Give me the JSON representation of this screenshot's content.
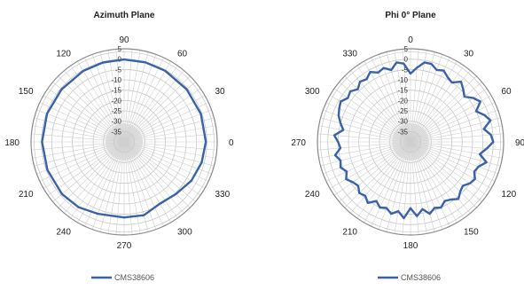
{
  "chart_data": [
    {
      "type": "polar-line",
      "title": "Azimuth Plane",
      "r_ticks": [
        5,
        0,
        -5,
        -10,
        -15,
        -20,
        -25,
        -30,
        -35
      ],
      "rlim": [
        -40,
        5
      ],
      "angle_ticks": [
        0,
        30,
        60,
        90,
        120,
        150,
        180,
        210,
        240,
        270,
        300,
        330
      ],
      "angle_zero": "right",
      "angle_direction": "counterclockwise",
      "angle_grid_step": 5,
      "grid": true,
      "legend": "bottom",
      "series": [
        {
          "name": "CMS38606",
          "color": "#3a62a8",
          "theta": [
            0,
            20,
            40,
            60,
            75,
            90,
            105,
            120,
            140,
            160,
            180,
            200,
            220,
            235,
            250,
            270,
            285,
            300,
            315,
            330,
            345,
            360
          ],
          "r": [
            -0.5,
            -0.5,
            -0.5,
            -0.3,
            -0.2,
            -0.2,
            -0.3,
            -0.4,
            -0.5,
            -0.3,
            -0.3,
            -0.5,
            -0.8,
            -1.5,
            -3.0,
            -3.5,
            -3.3,
            -5.5,
            -4.5,
            -2.5,
            -1.2,
            -0.5
          ]
        }
      ]
    },
    {
      "type": "polar-line",
      "title": "Phi 0° Plane",
      "r_ticks": [
        5,
        0,
        -5,
        -10,
        -15,
        -20,
        -25,
        -30,
        -35
      ],
      "rlim": [
        -40,
        5
      ],
      "angle_ticks": [
        0,
        30,
        60,
        90,
        120,
        150,
        180,
        210,
        240,
        270,
        300,
        330
      ],
      "angle_zero": "top",
      "angle_direction": "clockwise",
      "angle_grid_step": 5,
      "grid": true,
      "legend": "bottom",
      "series": [
        {
          "name": "CMS38606",
          "color": "#3a62a8",
          "theta": [
            0,
            5,
            10,
            15,
            20,
            25,
            30,
            35,
            40,
            45,
            50,
            55,
            60,
            65,
            70,
            75,
            80,
            85,
            90,
            95,
            100,
            105,
            110,
            115,
            120,
            125,
            130,
            135,
            140,
            145,
            150,
            155,
            160,
            165,
            170,
            175,
            180,
            185,
            190,
            195,
            200,
            205,
            210,
            215,
            220,
            225,
            230,
            235,
            240,
            245,
            250,
            255,
            260,
            265,
            270,
            275,
            280,
            285,
            290,
            295,
            300,
            305,
            310,
            315,
            320,
            325,
            330,
            335,
            340,
            345,
            350,
            355,
            360
          ],
          "r": [
            -7,
            -4,
            -1,
            -1,
            -3,
            -2,
            -4,
            -5,
            -2,
            -4,
            -6,
            -3,
            -1,
            -5,
            -2,
            0,
            -4,
            -1,
            0,
            -3,
            -6,
            -2,
            -5,
            -6,
            -4,
            -5,
            -7,
            -6,
            -4,
            -6,
            -7,
            -5,
            -6,
            -4,
            -7,
            -4,
            -8,
            -3,
            -6,
            -4,
            -6,
            -5,
            -7,
            -4,
            -6,
            -5,
            -7,
            -6,
            -4,
            -6,
            -4,
            -5,
            -3,
            -6,
            -5,
            -3,
            -7,
            -5,
            -3,
            -2,
            -1,
            -3,
            -2,
            -4,
            -2,
            -3,
            -1,
            -3,
            -2,
            -4,
            -1,
            -2,
            -7
          ]
        }
      ]
    }
  ]
}
